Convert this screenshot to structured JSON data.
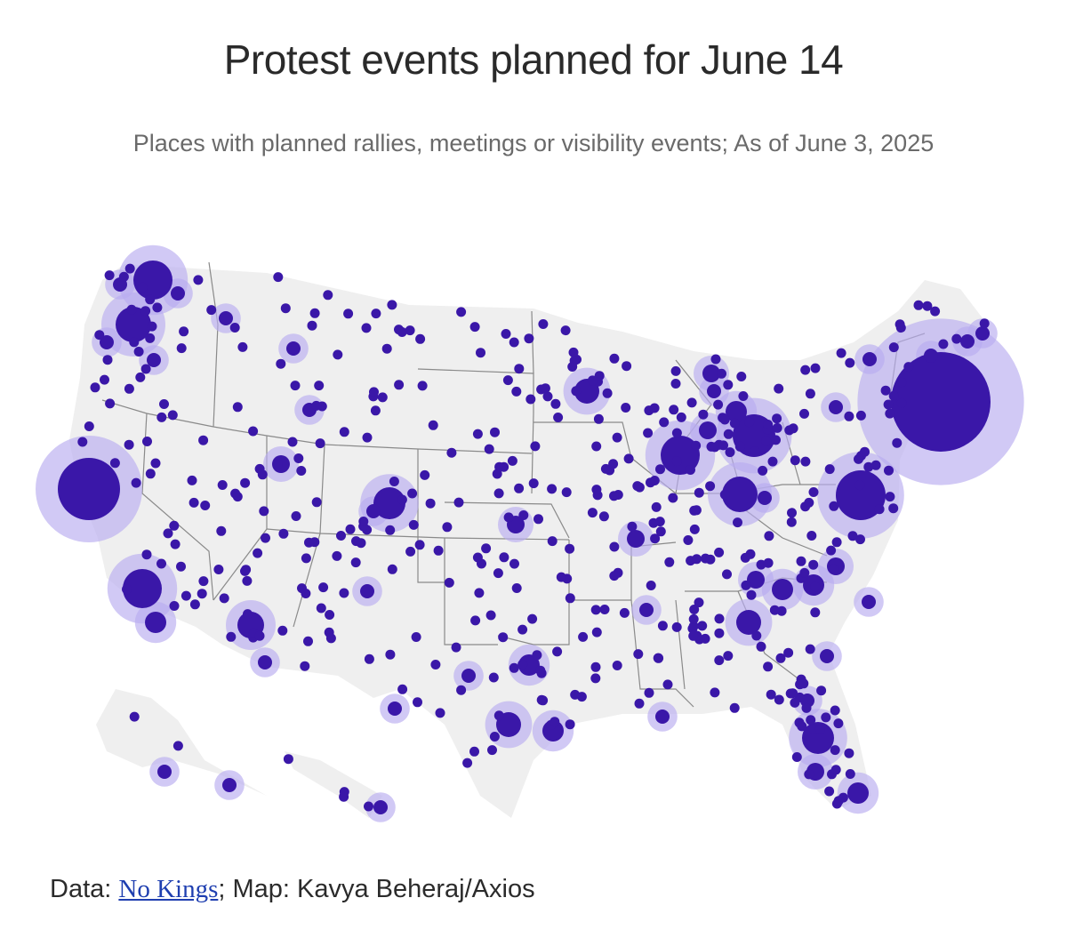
{
  "title": "Protest events planned for June 14",
  "subtitle": "Places with planned rallies, meetings or visibility events; As of June 3, 2025",
  "credit": {
    "data_prefix": "Data: ",
    "data_link_text": "No Kings",
    "map_text": "; Map: Kavya Beheraj/Axios"
  },
  "colors": {
    "dot": "#3a17a8",
    "halo": "#b8acf0",
    "land": "#efefef",
    "border": "#8a8a8a",
    "link": "#1f3fb0"
  },
  "legend": "none"
}
